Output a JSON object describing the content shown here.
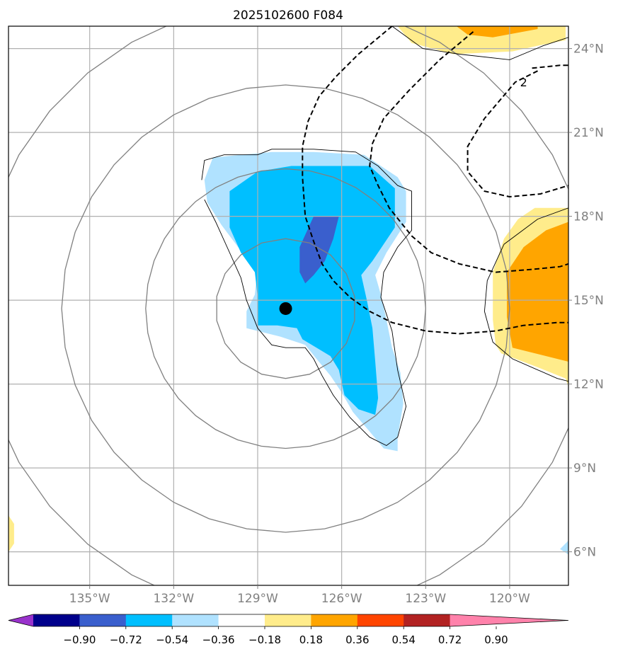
{
  "chart_data": {
    "type": "contour-map",
    "title": "2025102600 F084",
    "projection": "lat-lon",
    "xlim": [
      -137.9,
      -117.9
    ],
    "ylim": [
      4.8,
      24.8
    ],
    "x_ticks": [
      {
        "value": -135,
        "label": "135°W"
      },
      {
        "value": -132,
        "label": "132°W"
      },
      {
        "value": -129,
        "label": "129°W"
      },
      {
        "value": -126,
        "label": "126°W"
      },
      {
        "value": -123,
        "label": "123°W"
      },
      {
        "value": -120,
        "label": "120°W"
      }
    ],
    "y_ticks": [
      {
        "value": 24,
        "label": "24°N"
      },
      {
        "value": 21,
        "label": "21°N"
      },
      {
        "value": 18,
        "label": "18°N"
      },
      {
        "value": 15,
        "label": "15°N"
      },
      {
        "value": 12,
        "label": "12°N"
      },
      {
        "value": 9,
        "label": "9°N"
      },
      {
        "value": 6,
        "label": "6°N"
      }
    ],
    "center_marker": {
      "lon": -128.0,
      "lat": 14.7,
      "color": "#000000"
    },
    "range_rings_deg": [
      2.5,
      5,
      8,
      11
    ],
    "ring_color": "#808080",
    "contour_label": "2",
    "colorbar": {
      "levels": [
        -0.9,
        -0.72,
        -0.54,
        -0.36,
        -0.18,
        0.18,
        0.36,
        0.54,
        0.72,
        0.9
      ],
      "tick_labels": [
        "−0.90",
        "−0.72",
        "−0.54",
        "−0.36",
        "−0.18",
        "0.18",
        "0.36",
        "0.54",
        "0.72",
        "0.90"
      ],
      "colors": [
        "#9932cc",
        "#00008b",
        "#3a5fcd",
        "#00bfff",
        "#b0e2ff",
        "#ffffff",
        "#ffec8b",
        "#ffa500",
        "#ff4500",
        "#b22222",
        "#ff82ab"
      ],
      "extend": "both"
    },
    "filled_regions": [
      {
        "name": "neg-light",
        "color": "#b0e2ff",
        "points": [
          [
            -130.9,
            19.3
          ],
          [
            -130.6,
            20.1
          ],
          [
            -129.6,
            20.2
          ],
          [
            -128.5,
            20.3
          ],
          [
            -127.0,
            20.3
          ],
          [
            -125.2,
            20.2
          ],
          [
            -124.0,
            19.4
          ],
          [
            -123.7,
            18.9
          ],
          [
            -123.7,
            17.8
          ],
          [
            -124.4,
            16.7
          ],
          [
            -124.8,
            15.9
          ],
          [
            -124.6,
            15.2
          ],
          [
            -124.4,
            14.3
          ],
          [
            -124.2,
            13.3
          ],
          [
            -123.9,
            12.4
          ],
          [
            -123.8,
            11.3
          ],
          [
            -124.0,
            10.1
          ],
          [
            -124.0,
            9.6
          ],
          [
            -124.5,
            9.7
          ],
          [
            -125.0,
            10.3
          ],
          [
            -125.6,
            11.0
          ],
          [
            -126.0,
            11.7
          ],
          [
            -126.4,
            12.3
          ],
          [
            -126.9,
            12.9
          ],
          [
            -127.3,
            13.4
          ],
          [
            -128.2,
            13.7
          ],
          [
            -129.0,
            13.9
          ],
          [
            -129.4,
            14.0
          ],
          [
            -129.4,
            14.6
          ],
          [
            -129.1,
            15.2
          ],
          [
            -129.0,
            16.2
          ],
          [
            -129.7,
            16.9
          ],
          [
            -130.3,
            17.7
          ],
          [
            -130.8,
            18.5
          ]
        ]
      },
      {
        "name": "neg-medium",
        "color": "#00bfff",
        "points": [
          [
            -130.0,
            18.9
          ],
          [
            -129.0,
            19.6
          ],
          [
            -127.8,
            19.8
          ],
          [
            -126.5,
            19.8
          ],
          [
            -125.0,
            19.8
          ],
          [
            -124.1,
            19.0
          ],
          [
            -124.1,
            17.6
          ],
          [
            -124.9,
            16.4
          ],
          [
            -125.3,
            15.9
          ],
          [
            -125.1,
            15.0
          ],
          [
            -124.9,
            14.0
          ],
          [
            -124.8,
            12.8
          ],
          [
            -124.7,
            11.5
          ],
          [
            -124.8,
            10.9
          ],
          [
            -125.4,
            11.1
          ],
          [
            -125.9,
            11.6
          ],
          [
            -126.1,
            12.5
          ],
          [
            -126.4,
            13.0
          ],
          [
            -126.9,
            13.3
          ],
          [
            -127.4,
            13.6
          ],
          [
            -127.6,
            14.0
          ],
          [
            -128.3,
            14.1
          ],
          [
            -129.0,
            14.1
          ],
          [
            -129.0,
            15.1
          ],
          [
            -129.1,
            16.0
          ],
          [
            -129.6,
            16.7
          ],
          [
            -130.0,
            17.6
          ]
        ]
      },
      {
        "name": "neg-dark",
        "color": "#3a5fcd",
        "points": [
          [
            -127.0,
            18.0
          ],
          [
            -126.1,
            18.0
          ],
          [
            -126.3,
            17.2
          ],
          [
            -126.6,
            16.4
          ],
          [
            -127.0,
            15.9
          ],
          [
            -127.3,
            15.6
          ],
          [
            -127.5,
            16.0
          ],
          [
            -127.5,
            16.9
          ]
        ]
      },
      {
        "name": "pos-top-light",
        "color": "#ffec8b",
        "points": [
          [
            -124.0,
            24.8
          ],
          [
            -118.0,
            24.8
          ],
          [
            -118.0,
            24.3
          ],
          [
            -119.0,
            24.1
          ],
          [
            -119.9,
            23.9
          ],
          [
            -122.0,
            23.8
          ],
          [
            -123.5,
            24.2
          ]
        ]
      },
      {
        "name": "pos-top-orange",
        "color": "#ffa500",
        "points": [
          [
            -121.9,
            24.8
          ],
          [
            -119.0,
            24.8
          ],
          [
            -119.0,
            24.7
          ],
          [
            -120.6,
            24.4
          ],
          [
            -121.5,
            24.5
          ]
        ]
      },
      {
        "name": "pos-right-light",
        "color": "#ffec8b",
        "points": [
          [
            -117.9,
            18.3
          ],
          [
            -117.9,
            11.9
          ],
          [
            -118.0,
            12.2
          ],
          [
            -119.0,
            12.6
          ],
          [
            -120.3,
            13.1
          ],
          [
            -120.5,
            13.4
          ],
          [
            -120.6,
            14.3
          ],
          [
            -120.6,
            16.0
          ],
          [
            -120.4,
            16.6
          ],
          [
            -120.2,
            17.2
          ],
          [
            -119.7,
            17.9
          ],
          [
            -119.1,
            18.3
          ]
        ]
      },
      {
        "name": "pos-right-orange",
        "color": "#ffa500",
        "points": [
          [
            -117.9,
            17.8
          ],
          [
            -117.9,
            12.8
          ],
          [
            -119.9,
            13.3
          ],
          [
            -120.1,
            14.4
          ],
          [
            -120.1,
            16.0
          ],
          [
            -119.5,
            16.9
          ],
          [
            -118.7,
            17.5
          ]
        ]
      },
      {
        "name": "pos-bottom-left",
        "color": "#ffec8b",
        "points": [
          [
            -137.9,
            7.3
          ],
          [
            -137.7,
            7.0
          ],
          [
            -137.7,
            6.3
          ],
          [
            -137.9,
            6.0
          ]
        ]
      },
      {
        "name": "neg-bottom-right",
        "color": "#b0e2ff",
        "points": [
          [
            -117.9,
            6.4
          ],
          [
            -118.2,
            6.1
          ],
          [
            -117.9,
            5.9
          ]
        ]
      }
    ],
    "solid_contours": [
      {
        "name": "neg-outline",
        "points": [
          [
            -131.0,
            19.3
          ],
          [
            -130.9,
            20.0
          ],
          [
            -130.2,
            20.2
          ],
          [
            -129.0,
            20.2
          ],
          [
            -128.5,
            20.4
          ],
          [
            -127.0,
            20.4
          ],
          [
            -125.5,
            20.3
          ],
          [
            -124.7,
            19.8
          ],
          [
            -124.0,
            19.1
          ],
          [
            -123.5,
            18.9
          ],
          [
            -123.5,
            17.5
          ],
          [
            -124.0,
            16.9
          ],
          [
            -124.5,
            16.0
          ],
          [
            -124.6,
            15.1
          ],
          [
            -124.2,
            13.9
          ],
          [
            -124.0,
            12.5
          ],
          [
            -123.7,
            11.2
          ],
          [
            -124.0,
            10.1
          ],
          [
            -124.4,
            9.8
          ],
          [
            -125.0,
            10.1
          ],
          [
            -125.7,
            10.8
          ],
          [
            -126.3,
            11.6
          ],
          [
            -126.7,
            12.3
          ],
          [
            -127.0,
            12.9
          ],
          [
            -127.3,
            13.3
          ],
          [
            -128.0,
            13.3
          ],
          [
            -128.5,
            13.4
          ],
          [
            -129.0,
            14.0
          ],
          [
            -129.4,
            15.0
          ],
          [
            -129.6,
            15.8
          ],
          [
            -130.0,
            16.7
          ],
          [
            -130.5,
            17.8
          ],
          [
            -130.9,
            18.6
          ]
        ]
      },
      {
        "name": "pos-top-outline",
        "points": [
          [
            -124.2,
            24.8
          ],
          [
            -123.1,
            24.0
          ],
          [
            -121.8,
            23.8
          ],
          [
            -120.0,
            23.6
          ],
          [
            -118.8,
            24.1
          ],
          [
            -117.9,
            24.4
          ]
        ]
      },
      {
        "name": "pos-right-outline",
        "points": [
          [
            -117.9,
            18.3
          ],
          [
            -119.0,
            17.9
          ],
          [
            -120.2,
            17.0
          ],
          [
            -120.8,
            15.7
          ],
          [
            -120.9,
            14.6
          ],
          [
            -120.6,
            13.5
          ],
          [
            -119.9,
            12.9
          ],
          [
            -118.3,
            12.2
          ],
          [
            -117.9,
            12.1
          ]
        ]
      }
    ],
    "dashed_contours": [
      {
        "name": "dash-1",
        "points": [
          [
            -124.2,
            24.8
          ],
          [
            -125.4,
            23.8
          ],
          [
            -126.2,
            23.0
          ],
          [
            -126.8,
            22.3
          ],
          [
            -127.2,
            21.4
          ],
          [
            -127.4,
            20.5
          ],
          [
            -127.4,
            19.4
          ],
          [
            -127.3,
            18.0
          ],
          [
            -127.0,
            17.1
          ],
          [
            -126.7,
            16.3
          ],
          [
            -126.3,
            15.7
          ],
          [
            -125.7,
            15.1
          ],
          [
            -125.0,
            14.6
          ],
          [
            -124.2,
            14.2
          ],
          [
            -123.0,
            13.9
          ],
          [
            -121.8,
            13.8
          ],
          [
            -120.5,
            13.9
          ],
          [
            -119.5,
            14.1
          ],
          [
            -118.3,
            14.2
          ],
          [
            -117.9,
            14.2
          ]
        ]
      },
      {
        "name": "dash-2",
        "points": [
          [
            -121.3,
            24.6
          ],
          [
            -122.5,
            23.6
          ],
          [
            -123.6,
            22.5
          ],
          [
            -124.5,
            21.5
          ],
          [
            -124.9,
            20.6
          ],
          [
            -125.0,
            19.8
          ],
          [
            -124.7,
            19.1
          ],
          [
            -124.3,
            18.3
          ],
          [
            -123.5,
            17.3
          ],
          [
            -122.8,
            16.7
          ],
          [
            -121.8,
            16.3
          ],
          [
            -120.5,
            16.0
          ],
          [
            -119.2,
            16.1
          ],
          [
            -118.2,
            16.2
          ],
          [
            -117.9,
            16.3
          ]
        ]
      },
      {
        "name": "dash-3",
        "points": [
          [
            -119.0,
            23.2
          ],
          [
            -119.8,
            22.8
          ],
          [
            -120.9,
            21.5
          ],
          [
            -121.5,
            20.5
          ],
          [
            -121.5,
            19.6
          ],
          [
            -120.9,
            18.9
          ],
          [
            -120.0,
            18.7
          ],
          [
            -118.9,
            18.8
          ],
          [
            -117.9,
            19.1
          ]
        ]
      },
      {
        "name": "dash-3b",
        "points": [
          [
            -119.2,
            23.3
          ],
          [
            -118.2,
            23.4
          ],
          [
            -117.9,
            23.4
          ]
        ]
      }
    ]
  }
}
